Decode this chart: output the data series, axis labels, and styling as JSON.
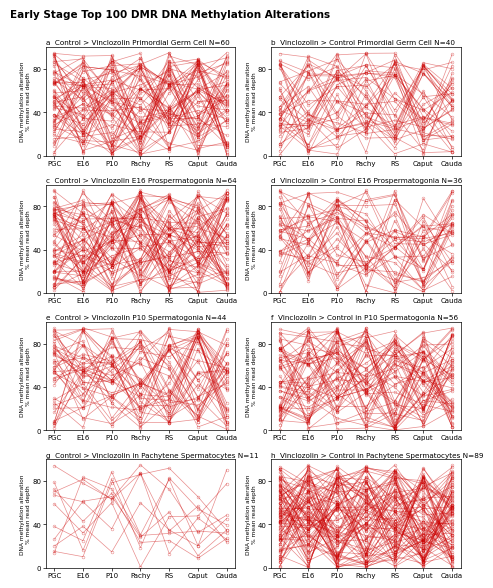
{
  "title": "Early Stage Top 100 DMR DNA Methylation Alterations",
  "x_labels": [
    "PGC",
    "E16",
    "P10",
    "Pachy",
    "RS",
    "Caput",
    "Cauda"
  ],
  "subplots": [
    {
      "label": "a",
      "title": "Control > Vinclozolin Primordial Germ Cell N=60",
      "n_lines": 60,
      "seed": 101
    },
    {
      "label": "b",
      "title": "Vinclozolin > Control Primordial Germ Cell N=40",
      "n_lines": 40,
      "seed": 202
    },
    {
      "label": "c",
      "title": "Control > Vinclozolin E16 Prospermatogonia N=64",
      "n_lines": 64,
      "seed": 303
    },
    {
      "label": "d",
      "title": "Vinclozolin > Control E16 Prospermatogonia N=36",
      "n_lines": 36,
      "seed": 404
    },
    {
      "label": "e",
      "title": "Control > Vinclozolin P10 Spermatogonia N=44",
      "n_lines": 44,
      "seed": 505
    },
    {
      "label": "f",
      "title": "Vinclozolin > Control in P10 Spermatogonia N=56",
      "n_lines": 56,
      "seed": 606
    },
    {
      "label": "g",
      "title": "Control > Vinclozolin in Pachytene Spermatocytes N=11",
      "n_lines": 11,
      "seed": 707
    },
    {
      "label": "h",
      "title": "Vinclozolin > Control in Pachytene Spermatocytes N=89",
      "n_lines": 89,
      "seed": 808
    }
  ],
  "line_color": "#CC0000",
  "marker_color": "#CC0000",
  "ylim": [
    0,
    100
  ],
  "yticks": [
    0,
    40,
    80
  ],
  "ylabel": "DNA methylation alteration\n% mean read depth",
  "background_color": "#ffffff",
  "line_alpha": 0.45,
  "line_width": 0.5,
  "marker_size": 2.0,
  "title_fontsize": 7.5,
  "subplot_title_fontsize": 5.2,
  "axis_fontsize": 5.0,
  "tick_fontsize": 5.0,
  "ylabel_fontsize": 4.2
}
